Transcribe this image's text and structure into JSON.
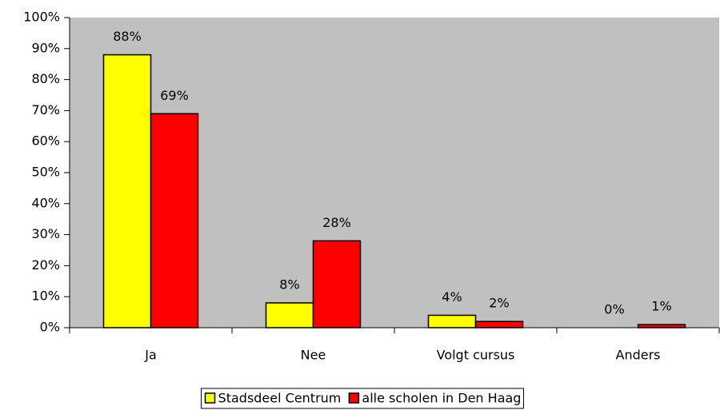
{
  "chart_data": {
    "type": "bar",
    "categories": [
      "Ja",
      "Nee",
      "Volgt cursus",
      "Anders"
    ],
    "series": [
      {
        "name": "Stadsdeel Centrum",
        "color": "#ffff00",
        "values": [
          88,
          8,
          4,
          0
        ],
        "value_labels": [
          "88%",
          "8%",
          "4%",
          "0%"
        ]
      },
      {
        "name": "alle scholen in Den Haag",
        "color": "#ff0000",
        "values": [
          69,
          28,
          2,
          1
        ],
        "value_labels": [
          "69%",
          "28%",
          "2%",
          "1%"
        ]
      }
    ],
    "ylim": [
      0,
      100
    ],
    "yticks": [
      {
        "value": 0,
        "label": "0%"
      },
      {
        "value": 10,
        "label": "10%"
      },
      {
        "value": 20,
        "label": "20%"
      },
      {
        "value": 30,
        "label": "30%"
      },
      {
        "value": 40,
        "label": "40%"
      },
      {
        "value": 50,
        "label": "50%"
      },
      {
        "value": 60,
        "label": "60%"
      },
      {
        "value": 70,
        "label": "70%"
      },
      {
        "value": 80,
        "label": "80%"
      },
      {
        "value": 90,
        "label": "90%"
      },
      {
        "value": 100,
        "label": "100%"
      }
    ],
    "plot_background": "#c0c0c0",
    "legend": "bottom"
  }
}
